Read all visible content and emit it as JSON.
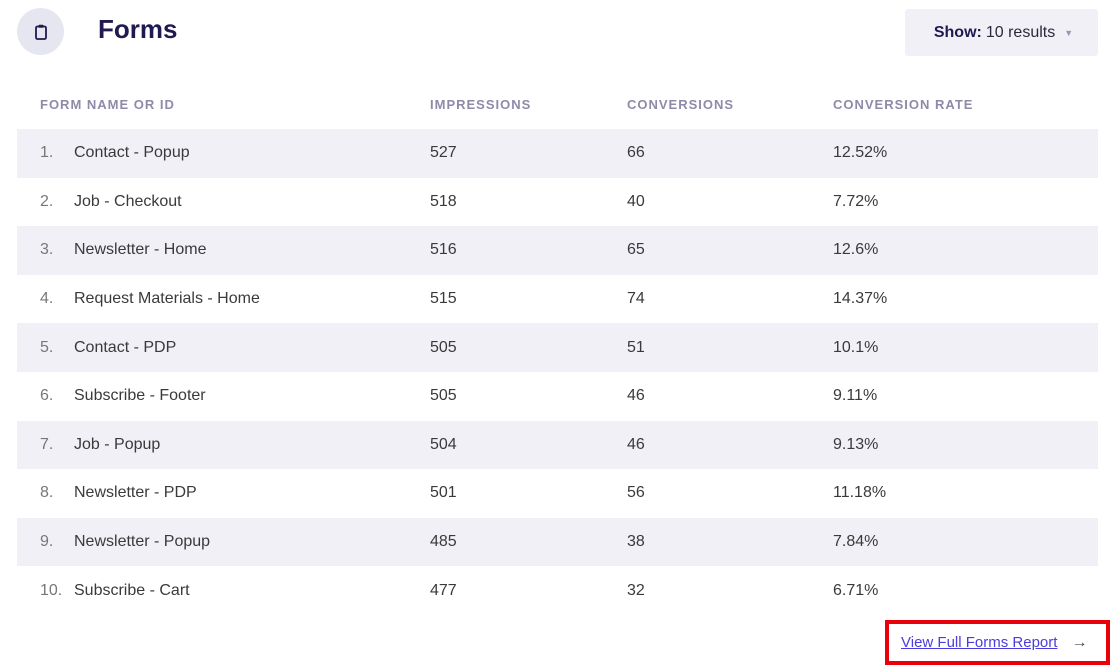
{
  "header": {
    "title": "Forms",
    "icon": "clipboard-icon"
  },
  "show_dropdown": {
    "label": "Show",
    "separator": ":",
    "value": "10 results"
  },
  "table": {
    "columns": [
      "FORM NAME OR ID",
      "IMPRESSIONS",
      "CONVERSIONS",
      "CONVERSION RATE"
    ],
    "rows": [
      {
        "index": "1.",
        "name": "Contact - Popup",
        "impressions": "527",
        "conversions": "66",
        "rate": "12.52%"
      },
      {
        "index": "2.",
        "name": "Job - Checkout",
        "impressions": "518",
        "conversions": "40",
        "rate": "7.72%"
      },
      {
        "index": "3.",
        "name": "Newsletter - Home",
        "impressions": "516",
        "conversions": "65",
        "rate": "12.6%"
      },
      {
        "index": "4.",
        "name": "Request Materials - Home",
        "impressions": "515",
        "conversions": "74",
        "rate": "14.37%"
      },
      {
        "index": "5.",
        "name": "Contact - PDP",
        "impressions": "505",
        "conversions": "51",
        "rate": "10.1%"
      },
      {
        "index": "6.",
        "name": "Subscribe - Footer",
        "impressions": "505",
        "conversions": "46",
        "rate": "9.11%"
      },
      {
        "index": "7.",
        "name": "Job - Popup",
        "impressions": "504",
        "conversions": "46",
        "rate": "9.13%"
      },
      {
        "index": "8.",
        "name": "Newsletter - PDP",
        "impressions": "501",
        "conversions": "56",
        "rate": "11.18%"
      },
      {
        "index": "9.",
        "name": "Newsletter - Popup",
        "impressions": "485",
        "conversions": "38",
        "rate": "7.84%"
      },
      {
        "index": "10.",
        "name": "Subscribe - Cart",
        "impressions": "477",
        "conversions": "32",
        "rate": "6.71%"
      }
    ]
  },
  "footer": {
    "link_label": "View Full Forms Report",
    "arrow": "→"
  },
  "colors": {
    "title": "#1f1a4f",
    "row_stripe": "#f0f0f6",
    "link": "#4a3ddb",
    "highlight_border": "#e8000b"
  }
}
